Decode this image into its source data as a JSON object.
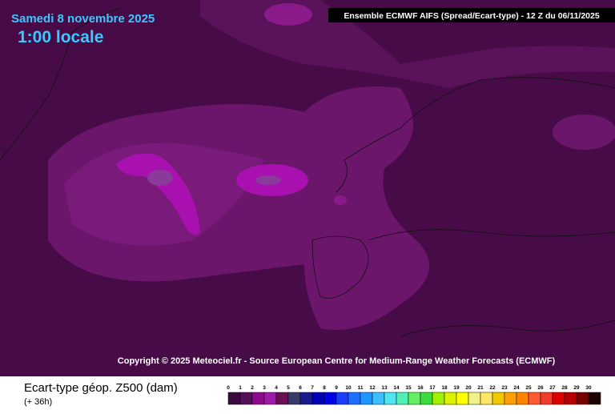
{
  "header": {
    "date": "Samedi 8 novembre 2025",
    "time": "1:00 locale",
    "model": "Ensemble ECMWF AIFS  (Spread/Ecart-type) - 12 Z du 06/11/2025"
  },
  "copyright": "Copyright © 2025 Meteociel.fr - Source European Centre for Medium-Range Weather Forecasts (ECMWF)",
  "legend": {
    "title": "Ecart-type géop. Z500 (dam)",
    "subtitle": "(+ 36h)",
    "items": [
      {
        "label": "0",
        "color": "#3c0a3c"
      },
      {
        "label": "1",
        "color": "#55105a"
      },
      {
        "label": "2",
        "color": "#8c0a8c"
      },
      {
        "label": "3",
        "color": "#a01aa8"
      },
      {
        "label": "4",
        "color": "#6a1050"
      },
      {
        "label": "5",
        "color": "#3a3a6a"
      },
      {
        "label": "6",
        "color": "#1a1a8c"
      },
      {
        "label": "7",
        "color": "#0000b4"
      },
      {
        "label": "8",
        "color": "#0000e6"
      },
      {
        "label": "9",
        "color": "#1a3cff"
      },
      {
        "label": "10",
        "color": "#1e6eff"
      },
      {
        "label": "11",
        "color": "#1e96ff"
      },
      {
        "label": "12",
        "color": "#3cbeff"
      },
      {
        "label": "13",
        "color": "#50e6f0"
      },
      {
        "label": "14",
        "color": "#50f0b4"
      },
      {
        "label": "15",
        "color": "#64f064"
      },
      {
        "label": "16",
        "color": "#3cdc3c"
      },
      {
        "label": "17",
        "color": "#a0f000"
      },
      {
        "label": "18",
        "color": "#dcf000"
      },
      {
        "label": "19",
        "color": "#ffff00"
      },
      {
        "label": "20",
        "color": "#f0f08c"
      },
      {
        "label": "21",
        "color": "#ffe664"
      },
      {
        "label": "22",
        "color": "#f0c800"
      },
      {
        "label": "23",
        "color": "#ffa000"
      },
      {
        "label": "24",
        "color": "#ff8200"
      },
      {
        "label": "25",
        "color": "#ff5a32"
      },
      {
        "label": "26",
        "color": "#f03c28"
      },
      {
        "label": "27",
        "color": "#dc0000"
      },
      {
        "label": "28",
        "color": "#b40000"
      },
      {
        "label": "29",
        "color": "#780000"
      },
      {
        "label": "30",
        "color": "#1e0000"
      }
    ]
  }
}
